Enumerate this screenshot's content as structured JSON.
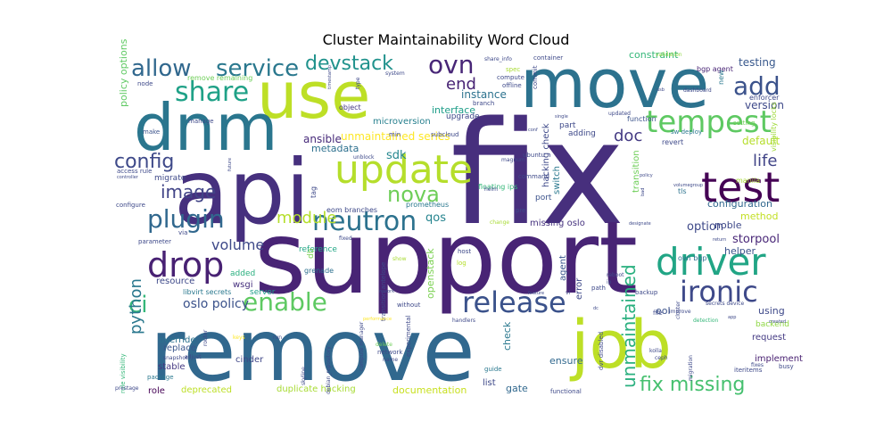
{
  "title": "Cluster Maintainability Word Cloud",
  "palette": "viridis",
  "words": [
    {
      "text": "fix",
      "color": "#472f7d"
    },
    {
      "text": "support",
      "color": "#482475"
    },
    {
      "text": "remove",
      "color": "#31688e"
    },
    {
      "text": "api",
      "color": "#46307e"
    },
    {
      "text": "move",
      "color": "#2c728e"
    },
    {
      "text": "use",
      "color": "#bddf26"
    },
    {
      "text": "dnm",
      "color": "#2a768e"
    },
    {
      "text": "job",
      "color": "#bddf26"
    },
    {
      "text": "update",
      "color": "#b5de2b"
    },
    {
      "text": "test",
      "color": "#440154"
    },
    {
      "text": "driver",
      "color": "#21a585"
    },
    {
      "text": "tempest",
      "color": "#5ec962"
    },
    {
      "text": "neutron",
      "color": "#2c728e"
    },
    {
      "text": "release",
      "color": "#3b528b"
    },
    {
      "text": "ironic",
      "color": "#3e4989"
    },
    {
      "text": "drop",
      "color": "#482173"
    },
    {
      "text": "plugin",
      "color": "#31688e"
    },
    {
      "text": "share",
      "color": "#1fa187"
    },
    {
      "text": "allow",
      "color": "#31688e"
    },
    {
      "text": "service",
      "color": "#2a788e"
    },
    {
      "text": "add",
      "color": "#3b528b"
    },
    {
      "text": "ovn",
      "color": "#482677"
    },
    {
      "text": "enable",
      "color": "#5ec962"
    },
    {
      "text": "ci",
      "color": "#35b779"
    },
    {
      "text": "devstack",
      "color": "#20928c"
    },
    {
      "text": "nova",
      "color": "#6ece58"
    },
    {
      "text": "config",
      "color": "#3e4989"
    },
    {
      "text": "image",
      "color": "#414487"
    },
    {
      "text": "module",
      "color": "#b5de2b"
    },
    {
      "text": "fix missing",
      "color": "#46c06f"
    },
    {
      "text": "unmaintained",
      "color": "#2ab07f"
    },
    {
      "text": "doc",
      "color": "#443a83"
    },
    {
      "text": "life",
      "color": "#414487"
    },
    {
      "text": "end",
      "color": "#482475"
    },
    {
      "text": "python",
      "color": "#2a788e"
    },
    {
      "text": "volume",
      "color": "#3e4989"
    },
    {
      "text": "oslo policy",
      "color": "#3b528b"
    },
    {
      "text": "unmaintained series",
      "color": "#fde725"
    },
    {
      "text": "testing",
      "color": "#38588c"
    },
    {
      "text": "version",
      "color": "#3e4989"
    },
    {
      "text": "qos",
      "color": "#25848e"
    },
    {
      "text": "sdk",
      "color": "#24868e"
    },
    {
      "text": "storpool",
      "color": "#482677"
    },
    {
      "text": "option",
      "color": "#3e4989"
    },
    {
      "text": "constraint",
      "color": "#35b779"
    },
    {
      "text": "instance",
      "color": "#2c728e"
    },
    {
      "text": "interface",
      "color": "#1f9e89"
    },
    {
      "text": "default",
      "color": "#b5de2b"
    },
    {
      "text": "ansible",
      "color": "#472a7a"
    },
    {
      "text": "metadata",
      "color": "#2d708e"
    },
    {
      "text": "configuration",
      "color": "#31688e"
    },
    {
      "text": "method",
      "color": "#c2df23"
    },
    {
      "text": "noble",
      "color": "#3e4989"
    },
    {
      "text": "helper",
      "color": "#3b528b"
    },
    {
      "text": "policy options",
      "color": "#5ec962"
    },
    {
      "text": "eol",
      "color": "#3b528b"
    },
    {
      "text": "using",
      "color": "#3e4989"
    },
    {
      "text": "request",
      "color": "#443a83"
    },
    {
      "text": "implement",
      "color": "#482071"
    },
    {
      "text": "ensure",
      "color": "#31688e"
    },
    {
      "text": "check",
      "color": "#2a788e"
    },
    {
      "text": "gate",
      "color": "#31688e"
    },
    {
      "text": "list",
      "color": "#3e4989"
    },
    {
      "text": "documentation",
      "color": "#c8e020"
    },
    {
      "text": "duplicate hacking",
      "color": "#a8db34"
    },
    {
      "text": "deprecated",
      "color": "#bddf26"
    },
    {
      "text": "role",
      "color": "#440154"
    },
    {
      "text": "stable",
      "color": "#453882"
    },
    {
      "text": "override",
      "color": "#2c728e"
    },
    {
      "text": "replace",
      "color": "#39568c"
    },
    {
      "text": "cinder",
      "color": "#3f4788"
    },
    {
      "text": "resource",
      "color": "#3e4989"
    },
    {
      "text": "wsgi",
      "color": "#46307e"
    },
    {
      "text": "reference",
      "color": "#22a785"
    },
    {
      "text": "missing oslo",
      "color": "#46337f"
    },
    {
      "text": "microversion",
      "color": "#27808e"
    },
    {
      "text": "upgrade",
      "color": "#3e4989"
    },
    {
      "text": "object",
      "color": "#453882"
    },
    {
      "text": "switch",
      "color": "#2a788e"
    },
    {
      "text": "port",
      "color": "#3b528b"
    },
    {
      "text": "hacking check",
      "color": "#3e4989"
    },
    {
      "text": "transition",
      "color": "#6ece58"
    },
    {
      "text": "openstack",
      "color": "#7ad151"
    },
    {
      "text": "agent",
      "color": "#39568c"
    },
    {
      "text": "error",
      "color": "#3e4989"
    },
    {
      "text": "backend",
      "color": "#8fd744"
    },
    {
      "text": "bgp agent",
      "color": "#482475"
    },
    {
      "text": "enforcer",
      "color": "#3e4989"
    },
    {
      "text": "visibility locks",
      "color": "#a0da39"
    },
    {
      "text": "ovn bgp",
      "color": "#2d708e"
    },
    {
      "text": "adding",
      "color": "#3e4989"
    },
    {
      "text": "part",
      "color": "#3e4989"
    },
    {
      "text": "eom branches",
      "color": "#3e4989"
    },
    {
      "text": "grenade",
      "color": "#2d708e"
    },
    {
      "text": "prometheus",
      "color": "#2a788e"
    },
    {
      "text": "floating ips",
      "color": "#35b779"
    },
    {
      "text": "revert",
      "color": "#3e4989"
    },
    {
      "text": "manila",
      "color": "#a8db34"
    },
    {
      "text": "tls",
      "color": "#2c728e"
    },
    {
      "text": "sw deploy",
      "color": "#2a788e"
    },
    {
      "text": "setting",
      "color": "#6ece58"
    },
    {
      "text": "function",
      "color": "#3b528b"
    },
    {
      "text": "tag",
      "color": "#3e4989"
    },
    {
      "text": "db",
      "color": "#7ad151"
    },
    {
      "text": "server",
      "color": "#1f9e89"
    },
    {
      "text": "added",
      "color": "#2ab07f"
    },
    {
      "text": "libvirt secrets",
      "color": "#2a788e"
    },
    {
      "text": "migrate",
      "color": "#3e4989"
    },
    {
      "text": "configure",
      "color": "#3e4989"
    },
    {
      "text": "access rule",
      "color": "#3e4989"
    },
    {
      "text": "manage",
      "color": "#3e4989"
    },
    {
      "text": "make",
      "color": "#3b528b"
    },
    {
      "text": "node",
      "color": "#3e4989"
    },
    {
      "text": "remove remaining",
      "color": "#6ece58"
    },
    {
      "text": "new",
      "color": "#2a788e"
    },
    {
      "text": "spec",
      "color": "#a8db34"
    },
    {
      "text": "branch",
      "color": "#3e4989"
    },
    {
      "text": "compute",
      "color": "#3e4989"
    },
    {
      "text": "offline",
      "color": "#3e4989"
    },
    {
      "text": "commit",
      "color": "#3e4989"
    },
    {
      "text": "updated",
      "color": "#3e4989"
    },
    {
      "text": "container",
      "color": "#3e4989"
    },
    {
      "text": "share_info",
      "color": "#3e4989"
    },
    {
      "text": "system",
      "color": "#3e4989"
    },
    {
      "text": "validation",
      "color": "#8fd744"
    },
    {
      "text": "dashboard",
      "color": "#3e4989"
    },
    {
      "text": "min",
      "color": "#3e4989"
    },
    {
      "text": "subcloud",
      "color": "#3e4989"
    },
    {
      "text": "ubuntu",
      "color": "#3e4989"
    },
    {
      "text": "command",
      "color": "#3e4989"
    },
    {
      "text": "magnum",
      "color": "#3e4989"
    },
    {
      "text": "unblock",
      "color": "#3e4989"
    },
    {
      "text": "helm",
      "color": "#3e4989"
    },
    {
      "text": "pre",
      "color": "#3e4989"
    },
    {
      "text": "host",
      "color": "#3e4989"
    },
    {
      "text": "log",
      "color": "#b5de2b"
    },
    {
      "text": "show",
      "color": "#a8db34"
    },
    {
      "text": "change",
      "color": "#a8db34"
    },
    {
      "text": "fixed",
      "color": "#3e4989"
    },
    {
      "text": "transition antelope",
      "color": "#3e4989"
    },
    {
      "text": "without",
      "color": "#3e4989"
    },
    {
      "text": "compute manager",
      "color": "#3e4989"
    },
    {
      "text": "handlers",
      "color": "#3e4989"
    },
    {
      "text": "delete",
      "color": "#6ece58"
    },
    {
      "text": "network",
      "color": "#3e4989"
    },
    {
      "text": "name",
      "color": "#3e4989"
    },
    {
      "text": "experimental",
      "color": "#3e4989"
    },
    {
      "text": "dvr disabled",
      "color": "#3e4989"
    },
    {
      "text": "guide",
      "color": "#2a788e"
    },
    {
      "text": "functional",
      "color": "#3e4989"
    },
    {
      "text": "skyline",
      "color": "#3e4989"
    },
    {
      "text": "debian_repository",
      "color": "#3e4989"
    },
    {
      "text": "cluster",
      "color": "#3e4989"
    },
    {
      "text": "router",
      "color": "#3e4989"
    },
    {
      "text": "rule visibility",
      "color": "#35b779"
    },
    {
      "text": "snapshot",
      "color": "#3e4989"
    },
    {
      "text": "adjust",
      "color": "#3e4989"
    },
    {
      "text": "package",
      "color": "#2a788e"
    },
    {
      "text": "prestage",
      "color": "#3e4989"
    },
    {
      "text": "keys",
      "color": "#fde725"
    },
    {
      "text": "run",
      "color": "#3e4989"
    },
    {
      "text": "parameter",
      "color": "#3e4989"
    },
    {
      "text": "via",
      "color": "#3e4989"
    },
    {
      "text": "future",
      "color": "#3e4989"
    },
    {
      "text": "controller",
      "color": "#3e4989"
    },
    {
      "text": "timestamp",
      "color": "#3e4989"
    },
    {
      "text": "type",
      "color": "#3e4989"
    },
    {
      "text": "backup",
      "color": "#3e4989"
    },
    {
      "text": "reboot",
      "color": "#3e4989"
    },
    {
      "text": "path",
      "color": "#3e4989"
    },
    {
      "text": "vl",
      "color": "#3e4989"
    },
    {
      "text": "ip",
      "color": "#3e4989"
    },
    {
      "text": "feature",
      "color": "#3e4989"
    },
    {
      "text": "migration",
      "color": "#3e4989"
    },
    {
      "text": "kolla",
      "color": "#3e4989"
    },
    {
      "text": "ceph",
      "color": "#3e4989"
    },
    {
      "text": "improve",
      "color": "#3e4989"
    },
    {
      "text": "secrets device",
      "color": "#3e4989"
    },
    {
      "text": "iteritems",
      "color": "#3e4989"
    },
    {
      "text": "fixes",
      "color": "#3e4989"
    },
    {
      "text": "busy",
      "color": "#3e4989"
    },
    {
      "text": "created",
      "color": "#3e4989"
    },
    {
      "text": "policy",
      "color": "#3e4989"
    },
    {
      "text": "volumegroup",
      "color": "#3e4989"
    },
    {
      "text": "return",
      "color": "#3e4989"
    },
    {
      "text": "detection",
      "color": "#35b779"
    },
    {
      "text": "app",
      "color": "#3e4989"
    },
    {
      "text": "file",
      "color": "#3e4989"
    },
    {
      "text": "dc",
      "color": "#3e4989"
    },
    {
      "text": "performance",
      "color": "#fde725"
    },
    {
      "text": "rework",
      "color": "#3e4989"
    },
    {
      "text": "bad",
      "color": "#3e4989"
    },
    {
      "text": "single",
      "color": "#3e4989"
    },
    {
      "text": "designate",
      "color": "#3e4989"
    },
    {
      "text": "conf",
      "color": "#3e4989"
    },
    {
      "text": "usb",
      "color": "#3e4989"
    }
  ]
}
